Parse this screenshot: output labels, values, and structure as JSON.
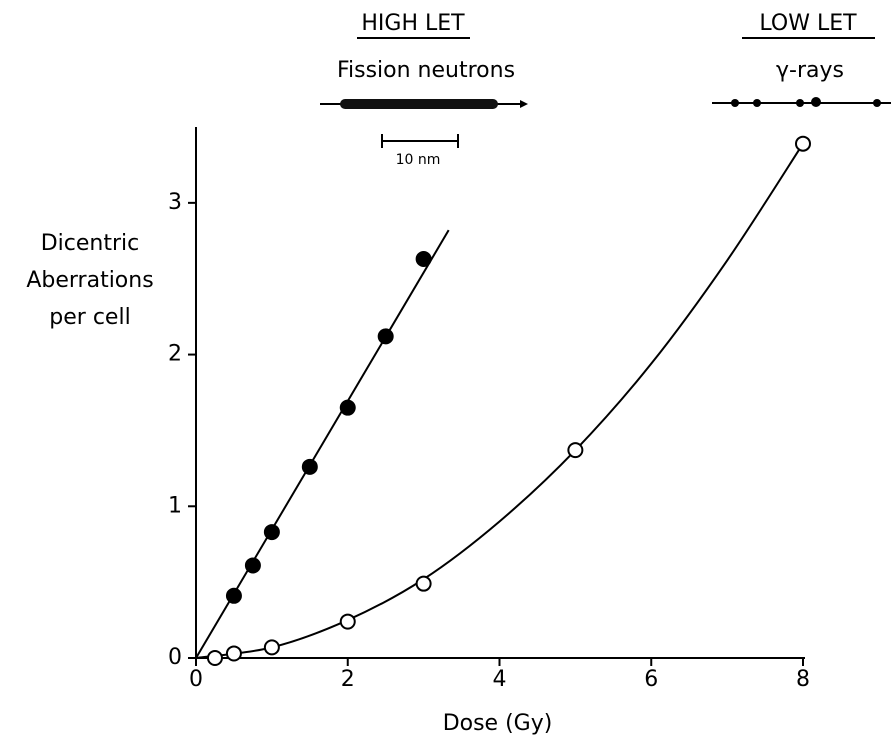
{
  "chart_data": {
    "type": "scatter",
    "x_label": "Dose (Gy)",
    "y_label_lines": [
      "Dicentric",
      "Aberrations",
      "per cell"
    ],
    "annotations": {
      "high_let": "HIGH LET",
      "neutrons": "Fission neutrons",
      "scale": "10 nm",
      "low_let": "LOW LET",
      "gamma": "γ-rays"
    },
    "xlim": [
      0,
      8
    ],
    "ylim": [
      0,
      3.5
    ],
    "xticks": [
      0,
      2,
      4,
      6,
      8
    ],
    "yticks": [
      0,
      1,
      2,
      3
    ],
    "grid": false,
    "series": [
      {
        "marker": "filled",
        "color": "#000000",
        "x": [
          0.5,
          0.75,
          1.0,
          1.5,
          2.0,
          2.5,
          3.0
        ],
        "values": [
          0.41,
          0.61,
          0.83,
          1.26,
          1.65,
          2.12,
          2.63
        ]
      },
      {
        "marker": "open",
        "color": "#000000",
        "x": [
          0.25,
          0.5,
          1.0,
          2.0,
          3.0,
          5.0,
          8.0
        ],
        "values": [
          0.0,
          0.03,
          0.07,
          0.24,
          0.49,
          1.37,
          3.39
        ]
      }
    ],
    "fits": [
      {
        "color": "#000000",
        "x": [
          0,
          3.33
        ],
        "values": [
          0,
          2.82
        ]
      },
      {
        "color": "#000000",
        "x": [
          0,
          1,
          2,
          3,
          4,
          5,
          6,
          7,
          8
        ],
        "values": [
          0,
          0.07,
          0.25,
          0.52,
          0.9,
          1.37,
          1.94,
          2.62,
          3.39
        ]
      }
    ]
  }
}
